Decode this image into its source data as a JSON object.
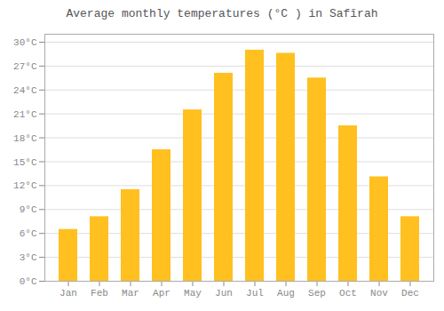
{
  "chart_data": {
    "type": "bar",
    "title": "Average monthly temperatures (°C ) in Safīrah",
    "categories": [
      "Jan",
      "Feb",
      "Mar",
      "Apr",
      "May",
      "Jun",
      "Jul",
      "Aug",
      "Sep",
      "Oct",
      "Nov",
      "Dec"
    ],
    "values": [
      6.5,
      8.1,
      11.5,
      16.5,
      21.5,
      26.1,
      29.0,
      28.6,
      25.5,
      19.5,
      13.1,
      8.1
    ],
    "color": "#FFC020",
    "ylim": [
      0,
      31
    ],
    "yticks": [
      {
        "value": 0,
        "label": "0°C"
      },
      {
        "value": 3,
        "label": "3°C"
      },
      {
        "value": 6,
        "label": "6°C"
      },
      {
        "value": 9,
        "label": "9°C"
      },
      {
        "value": 12,
        "label": "12°C"
      },
      {
        "value": 15,
        "label": "15°C"
      },
      {
        "value": 18,
        "label": "18°C"
      },
      {
        "value": 21,
        "label": "21°C"
      },
      {
        "value": 24,
        "label": "24°C"
      },
      {
        "value": 27,
        "label": "27°C"
      },
      {
        "value": 30,
        "label": "30°C"
      }
    ],
    "grid": true
  }
}
